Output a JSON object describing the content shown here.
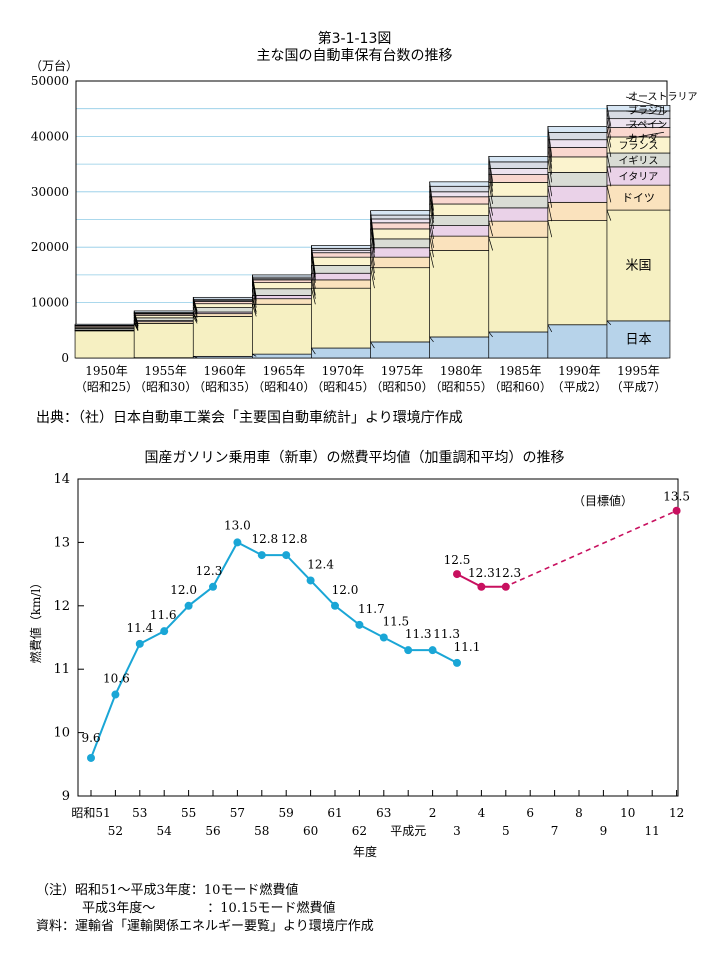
{
  "chart1": {
    "figure_no": "第3-1-13図",
    "title": "主な国の自動車保有台数の推移",
    "y_unit": "（万台）",
    "source": "出典：（社）日本自動車工業会「主要国自動車統計」より環境庁作成",
    "colors": {
      "日本": "#b7d3ea",
      "米国": "#f6f0c2",
      "ドイツ": "#fae2bd",
      "イタリア": "#ead2e8",
      "イギリス": "#d9dcd5",
      "フランス": "#fbf3ce",
      "カナダ": "#f9d7cf",
      "スペイン": "#ede3ef",
      "ブラジル": "#d7dbe4",
      "オーストラリア": "#d7e6f4"
    }
  },
  "chart2": {
    "title": "国産ガソリン乗用車（新車）の燃費平均値（加重調和平均）の推移",
    "target_label": "（目標値）",
    "note1": "（注）昭和51～平成3年度：10モード燃費値",
    "note2": "平成3年度～　　　　：10.15モード燃費値",
    "note3": "資料：運輸省「運輸関係エネルギー要覧」より環境庁作成",
    "colors": {
      "series_a": "#1aa6d6",
      "series_b": "#c8105f"
    }
  },
  "chart_data": [
    {
      "type": "bar",
      "stacked": true,
      "title": "主な国の自動車保有台数の推移",
      "ylabel": "（万台）",
      "ylim": [
        0,
        50000
      ],
      "yticks": [
        0,
        10000,
        20000,
        30000,
        40000,
        50000
      ],
      "grid": true,
      "categories": [
        "1950年",
        "1955年",
        "1960年",
        "1965年",
        "1970年",
        "1975年",
        "1980年",
        "1985年",
        "1990年",
        "1995年"
      ],
      "categories_sub": [
        "（昭和25）",
        "（昭和30）",
        "（昭和35）",
        "（昭和40）",
        "（昭和45）",
        "（昭和50）",
        "（昭和55）",
        "（昭和60）",
        "（平成2）",
        "（平成7）"
      ],
      "series": [
        {
          "name": "日本",
          "values": [
            0,
            50,
            300,
            700,
            1800,
            2900,
            3800,
            4700,
            6000,
            6700
          ]
        },
        {
          "name": "米国",
          "values": [
            4900,
            6200,
            7200,
            9000,
            10800,
            13400,
            15600,
            17100,
            18800,
            20000
          ]
        },
        {
          "name": "ドイツ",
          "values": [
            100,
            300,
            500,
            1000,
            1500,
            1900,
            2600,
            2900,
            3300,
            4500
          ]
        },
        {
          "name": "イタリア",
          "values": [
            50,
            200,
            300,
            600,
            1200,
            1700,
            1900,
            2400,
            2900,
            3300
          ]
        },
        {
          "name": "イギリス",
          "values": [
            300,
            500,
            800,
            1200,
            1400,
            1600,
            1800,
            2100,
            2500,
            2500
          ]
        },
        {
          "name": "フランス",
          "values": [
            200,
            400,
            700,
            1100,
            1500,
            1800,
            2100,
            2500,
            2800,
            2900
          ]
        },
        {
          "name": "カナダ",
          "values": [
            200,
            300,
            400,
            500,
            800,
            1100,
            1300,
            1400,
            1700,
            1700
          ]
        },
        {
          "name": "スペイン",
          "values": [
            50,
            100,
            150,
            200,
            450,
            700,
            900,
            1100,
            1400,
            1600
          ]
        },
        {
          "name": "ブラジル",
          "values": [
            100,
            150,
            250,
            300,
            350,
            700,
            1000,
            1200,
            1300,
            1400
          ]
        },
        {
          "name": "オーストラリア",
          "values": [
            200,
            300,
            350,
            400,
            500,
            800,
            800,
            1000,
            1100,
            1000
          ]
        }
      ],
      "label_inside": [
        "日本",
        "米国",
        "ドイツ",
        "イタリア",
        "イギリス",
        "フランス"
      ],
      "label_outside": [
        "オーストラリア",
        "ブラジル",
        "スペイン",
        "カナダ"
      ]
    },
    {
      "type": "line",
      "title": "国産ガソリン乗用車（新車）の燃費平均値（加重調和平均）の推移",
      "ylabel": "燃費値（km/l）",
      "xlabel": "年度",
      "ylim": [
        9,
        14
      ],
      "yticks": [
        9,
        10,
        11,
        12,
        13,
        14
      ],
      "x_ticks_top": [
        "昭和51",
        "53",
        "55",
        "57",
        "59",
        "61",
        "63",
        "2",
        "4",
        "6",
        "8",
        "10",
        "12"
      ],
      "x_ticks_bottom": [
        "52",
        "54",
        "56",
        "58",
        "60",
        "62",
        "平成元",
        "3",
        "5",
        "7",
        "9",
        "11"
      ],
      "series": [
        {
          "name": "10モード燃費値",
          "x": [
            "昭和51",
            "52",
            "53",
            "54",
            "55",
            "56",
            "57",
            "58",
            "59",
            "60",
            "61",
            "62",
            "63",
            "平成元",
            "2",
            "3"
          ],
          "y": [
            9.6,
            10.6,
            11.4,
            11.6,
            12.0,
            12.3,
            13.0,
            12.8,
            12.8,
            12.4,
            12.0,
            11.7,
            11.5,
            11.3,
            11.3,
            11.1
          ],
          "labels": [
            "9.6",
            "10.6",
            "11.4",
            "11.6",
            "12.0",
            "12.3",
            "13.0",
            "12.8",
            "12.8",
            "12.4",
            "12.0",
            "11.7",
            "11.5",
            "11.3",
            "11.3",
            "11.1"
          ]
        },
        {
          "name": "10.15モード燃費値",
          "x": [
            "3",
            "4",
            "5"
          ],
          "y": [
            12.5,
            12.3,
            12.3
          ],
          "labels": [
            "12.5",
            "12.3",
            "12.3"
          ]
        },
        {
          "name": "目標値",
          "x": [
            "5",
            "12"
          ],
          "y": [
            12.3,
            13.5
          ],
          "style": "dashed",
          "labels": [
            "",
            "13.5"
          ]
        }
      ]
    }
  ]
}
